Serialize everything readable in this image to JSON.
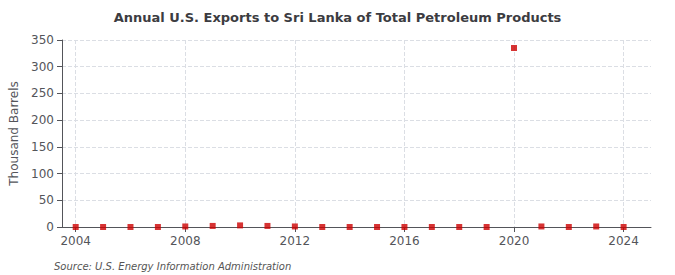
{
  "chart_data": {
    "type": "scatter",
    "title": "Annual U.S. Exports to Sri Lanka of Total Petroleum Products",
    "ylabel": "Thousand Barrels",
    "annotations": [
      "Source: U.S. Energy Information Administration"
    ],
    "x": [
      2004,
      2005,
      2006,
      2007,
      2008,
      2009,
      2010,
      2011,
      2012,
      2013,
      2014,
      2015,
      2016,
      2017,
      2018,
      2019,
      2020,
      2021,
      2022,
      2023,
      2024
    ],
    "values": [
      0,
      0,
      0,
      0,
      1,
      2,
      3,
      2,
      1,
      0,
      0,
      0,
      0,
      0,
      0,
      0,
      335,
      1,
      0,
      1,
      0
    ],
    "color": "#cc0000",
    "marker": "square",
    "xlim": [
      2003.5,
      2025
    ],
    "ylim": [
      0,
      350
    ],
    "xticks": [
      2004,
      2008,
      2012,
      2016,
      2020,
      2024
    ],
    "yticks": [
      0,
      50,
      100,
      150,
      200,
      250,
      300,
      350
    ],
    "grid": true
  }
}
